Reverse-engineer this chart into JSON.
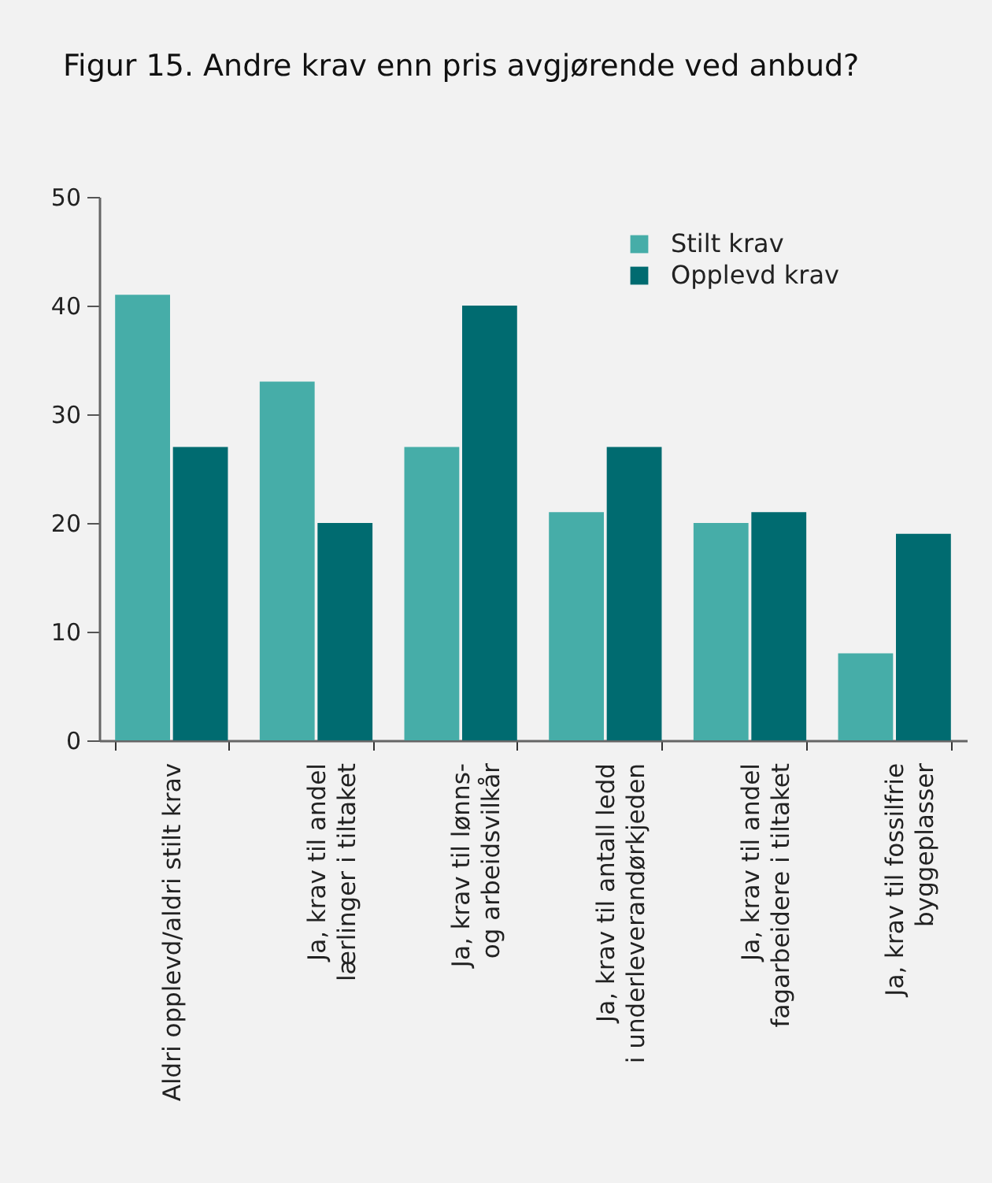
{
  "chart_data": {
    "type": "bar",
    "title": "Figur 15. Andre krav enn pris avgjørende ved anbud?",
    "categories": [
      "Aldri opplevd/aldri stilt krav",
      "Ja, krav til andel lærlinger i tiltaket",
      "Ja, krav til lønns- og arbeidsvilkår",
      "Ja, krav til antall ledd i underleverandørkjeden",
      "Ja, krav til andel fagarbeidere i tiltaket",
      "Ja, krav til fossilfrie byggeplasser"
    ],
    "series": [
      {
        "name": "Stilt krav",
        "color": "#46ada8",
        "values": [
          41,
          33,
          27,
          21,
          20,
          8
        ]
      },
      {
        "name": "Opplevd krav",
        "color": "#006b70",
        "values": [
          27,
          20,
          40,
          27,
          21,
          19
        ]
      }
    ],
    "ylim": [
      0,
      50
    ],
    "yticks": [
      0,
      10,
      20,
      30,
      40,
      50
    ],
    "legend": "top right"
  }
}
